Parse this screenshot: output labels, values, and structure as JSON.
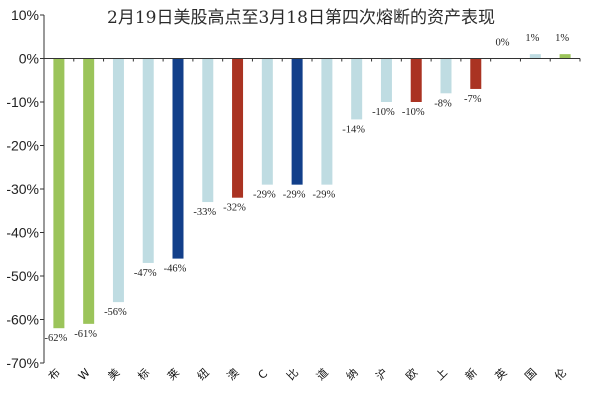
{
  "chart_data": {
    "type": "bar",
    "title": "2月19日美股高点至3月18日第四次熔断的资产表现",
    "ylim": [
      -70,
      10
    ],
    "yticks": [
      10,
      0,
      -10,
      -20,
      -30,
      -40,
      -50,
      -60,
      -70
    ],
    "ytick_labels": [
      "10%",
      "0%",
      "-10%",
      "-20%",
      "-30%",
      "-40%",
      "-50%",
      "-60%",
      "-70%"
    ],
    "grid": false,
    "legend": "none",
    "categories": [
      "布",
      "W",
      "美",
      "标",
      "莱",
      "纽",
      "澳",
      "C",
      "比",
      "道",
      "纳",
      "沪",
      "欧",
      "上",
      "新",
      "英",
      "国",
      "伦"
    ],
    "values": [
      -62,
      -61,
      -56,
      -47,
      -46,
      -33,
      -32,
      -29,
      -29,
      -29,
      -14,
      -10,
      -10,
      -8,
      -7,
      0,
      1,
      1
    ],
    "data_labels": [
      "-62%",
      "-61%",
      "-56%",
      "-47%",
      "-46%",
      "-33%",
      "-32%",
      "-29%",
      "-29%",
      "-29%",
      "-14%",
      "-10%",
      "-10%",
      "-8%",
      "-7%",
      "0%",
      "1%",
      "1%"
    ],
    "bar_colors": [
      "#9bc45a",
      "#9bc45a",
      "#bfdce2",
      "#bfdce2",
      "#123f8a",
      "#bfdce2",
      "#aa3322",
      "#bfdce2",
      "#123f8a",
      "#bfdce2",
      "#bfdce2",
      "#bfdce2",
      "#aa3322",
      "#bfdce2",
      "#aa3322",
      "#aa3322",
      "#bfdce2",
      "#9bc45a"
    ]
  }
}
